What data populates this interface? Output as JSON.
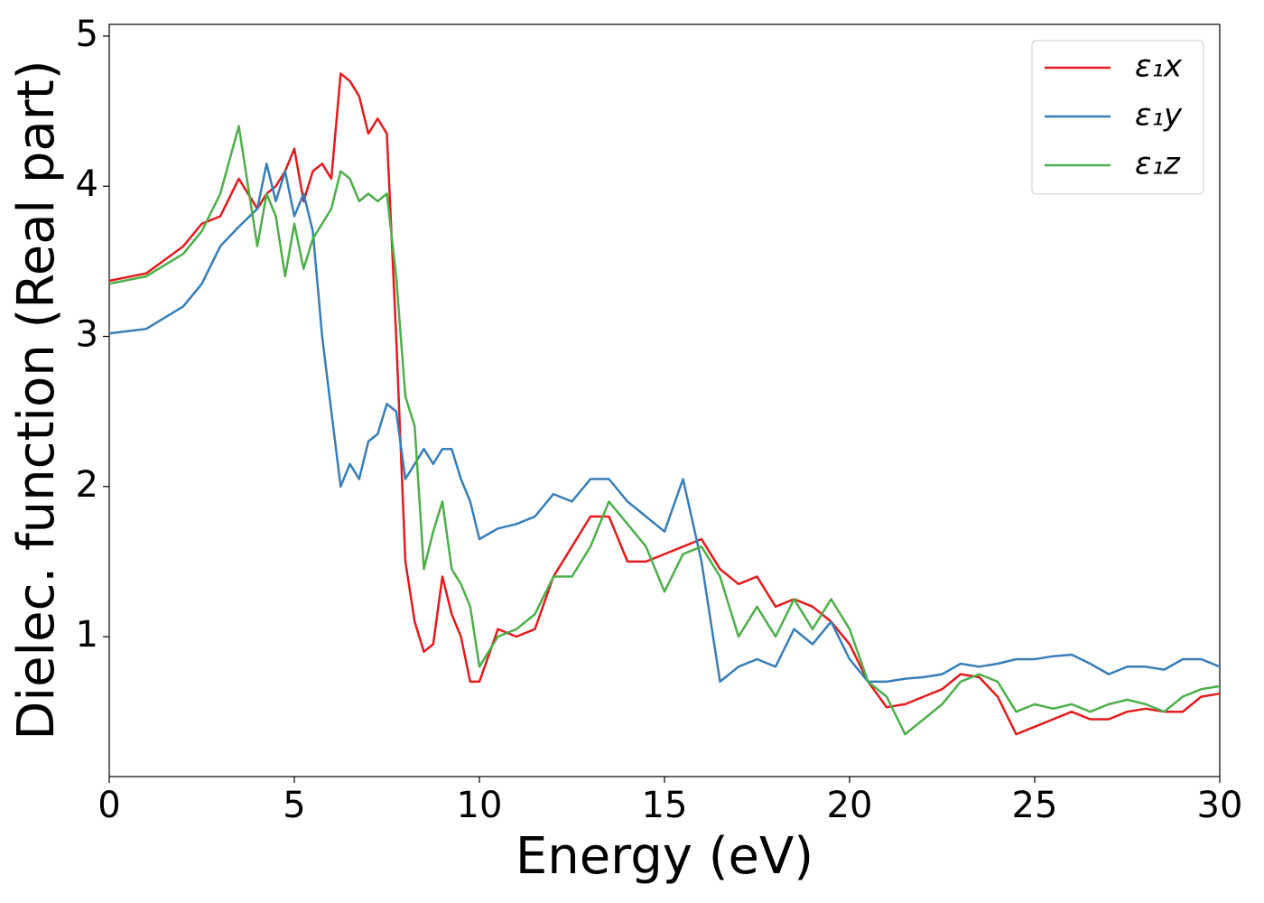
{
  "chart_data": {
    "type": "line",
    "xlabel": "Energy (eV)",
    "ylabel": "Dielec. function (Real part)",
    "x": [
      0,
      1,
      2,
      2.5,
      3,
      3.5,
      4,
      4.25,
      4.5,
      4.75,
      5,
      5.25,
      5.5,
      5.75,
      6,
      6.25,
      6.5,
      6.75,
      7,
      7.25,
      7.5,
      7.75,
      8,
      8.25,
      8.5,
      8.75,
      9,
      9.25,
      9.5,
      9.75,
      10,
      10.5,
      11,
      11.5,
      12,
      12.5,
      13,
      13.5,
      14,
      14.5,
      15,
      15.5,
      16,
      16.5,
      17,
      17.5,
      18,
      18.5,
      19,
      19.5,
      20,
      20.5,
      21,
      21.5,
      22,
      22.5,
      23,
      23.5,
      24,
      24.5,
      25,
      25.5,
      26,
      26.5,
      27,
      27.5,
      28,
      28.5,
      29,
      29.5,
      30
    ],
    "series": [
      {
        "name": "ε₁x",
        "color": "#e41a1c",
        "values": [
          3.37,
          3.42,
          3.6,
          3.75,
          3.8,
          4.05,
          3.85,
          3.95,
          4.0,
          4.1,
          4.25,
          3.9,
          4.1,
          4.15,
          4.05,
          4.75,
          4.7,
          4.6,
          4.35,
          4.45,
          4.35,
          3.0,
          1.5,
          1.1,
          0.9,
          0.95,
          1.4,
          1.15,
          1.0,
          0.7,
          0.7,
          1.05,
          1.0,
          1.05,
          1.4,
          1.6,
          1.8,
          1.8,
          1.5,
          1.5,
          1.55,
          1.6,
          1.65,
          1.45,
          1.35,
          1.4,
          1.2,
          1.25,
          1.2,
          1.1,
          0.95,
          0.7,
          0.53,
          0.55,
          0.6,
          0.65,
          0.75,
          0.73,
          0.6,
          0.35,
          0.4,
          0.45,
          0.5,
          0.45,
          0.45,
          0.5,
          0.52,
          0.5,
          0.5,
          0.6,
          0.62
        ]
      },
      {
        "name": "ε₁y",
        "color": "#377eb8",
        "values": [
          3.02,
          3.05,
          3.2,
          3.35,
          3.6,
          3.73,
          3.85,
          4.15,
          3.9,
          4.1,
          3.8,
          3.95,
          3.7,
          3.0,
          2.5,
          2.0,
          2.15,
          2.05,
          2.3,
          2.35,
          2.55,
          2.5,
          2.05,
          2.15,
          2.25,
          2.15,
          2.25,
          2.25,
          2.05,
          1.9,
          1.65,
          1.72,
          1.75,
          1.8,
          1.95,
          1.9,
          2.05,
          2.05,
          1.9,
          1.8,
          1.7,
          2.05,
          1.5,
          0.7,
          0.8,
          0.85,
          0.8,
          1.05,
          0.95,
          1.1,
          0.85,
          0.7,
          0.7,
          0.72,
          0.73,
          0.75,
          0.82,
          0.8,
          0.82,
          0.85,
          0.85,
          0.87,
          0.88,
          0.82,
          0.75,
          0.8,
          0.8,
          0.78,
          0.85,
          0.85,
          0.8
        ]
      },
      {
        "name": "ε₁z",
        "color": "#4daf4a",
        "values": [
          3.35,
          3.4,
          3.55,
          3.7,
          3.95,
          4.4,
          3.6,
          3.95,
          3.8,
          3.4,
          3.75,
          3.45,
          3.65,
          3.75,
          3.85,
          4.1,
          4.05,
          3.9,
          3.95,
          3.9,
          3.95,
          3.4,
          2.6,
          2.4,
          1.45,
          1.7,
          1.9,
          1.45,
          1.35,
          1.2,
          0.8,
          1.0,
          1.05,
          1.15,
          1.4,
          1.4,
          1.6,
          1.9,
          1.75,
          1.6,
          1.3,
          1.55,
          1.6,
          1.4,
          1.0,
          1.2,
          1.0,
          1.25,
          1.05,
          1.25,
          1.05,
          0.7,
          0.6,
          0.35,
          0.45,
          0.55,
          0.7,
          0.75,
          0.7,
          0.5,
          0.55,
          0.52,
          0.55,
          0.5,
          0.55,
          0.58,
          0.55,
          0.5,
          0.6,
          0.65,
          0.67
        ]
      }
    ],
    "xlim": [
      0,
      30
    ],
    "xticks": [
      0,
      5,
      10,
      15,
      20,
      25,
      30
    ],
    "ylim": [
      0.068,
      5.078
    ],
    "yticks": [
      1,
      2,
      3,
      4,
      5
    ],
    "grid": false,
    "legend": "upper-right"
  }
}
